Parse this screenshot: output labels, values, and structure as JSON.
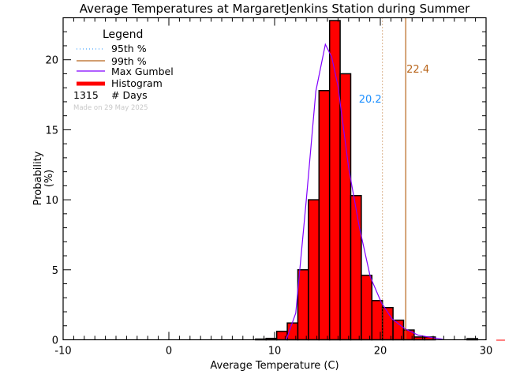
{
  "chart_data": {
    "type": "bar",
    "title": "Average Temperatures at MargaretJenkins Station during Summer",
    "xlabel": "Average Temperature (C)",
    "ylabel_line1": "Probability",
    "ylabel_line2": "(%)",
    "xlim": [
      -10,
      30
    ],
    "ylim": [
      0,
      23
    ],
    "x_ticks": [
      -10,
      0,
      10,
      20,
      30
    ],
    "y_ticks": [
      0,
      5,
      10,
      15,
      20
    ],
    "grid": false,
    "legend_position": "top-left",
    "legend": {
      "title": "Legend",
      "items": [
        {
          "label": "95th %",
          "style": "dotted",
          "color": "#1e90ff"
        },
        {
          "label": "99th %",
          "style": "solid",
          "color": "#b8651b"
        },
        {
          "label": "Max Gumbel",
          "style": "solid",
          "color": "#8000ff"
        },
        {
          "label": "Histogram",
          "style": "thick",
          "color": "#ff0000"
        }
      ],
      "days_count": "1315",
      "days_label": "# Days",
      "made_on": "Made on 29 May 2025"
    },
    "histogram": {
      "bin_width": 1,
      "bin_left_edges": [
        8.2,
        9.2,
        10.2,
        11.2,
        12.2,
        13.2,
        14.2,
        15.2,
        16.2,
        17.2,
        18.2,
        19.2,
        20.2,
        21.2,
        22.2,
        23.2,
        24.2,
        25.2,
        26.2,
        27.2,
        28.2
      ],
      "values": [
        0.05,
        0.1,
        0.6,
        1.2,
        5.0,
        10.0,
        17.8,
        22.8,
        19.0,
        10.3,
        4.6,
        2.8,
        2.3,
        1.4,
        0.7,
        0.2,
        0.2,
        0,
        0,
        0,
        0.08
      ],
      "color": "#ff0000"
    },
    "gumbel": {
      "color": "#8000ff",
      "x": [
        11.1,
        12.0,
        13.0,
        13.9,
        14.8,
        15.4,
        16.0,
        17.0,
        18.0,
        19.05,
        20.1,
        21.1,
        22.3,
        23.6,
        25.9
      ],
      "y": [
        0,
        1.9,
        10.0,
        17.75,
        21.1,
        20.2,
        18.1,
        12.3,
        8.1,
        4.5,
        2.65,
        1.5,
        0.8,
        0.32,
        0.04
      ]
    },
    "percentiles": [
      {
        "name": "95th %",
        "value": 20.2,
        "label": "20.2",
        "line_color": "#b8651b",
        "label_color": "#1e90ff",
        "style": "dotted"
      },
      {
        "name": "99th %",
        "value": 22.4,
        "label": "22.4",
        "line_color": "#b8651b",
        "label_color": "#b8651b",
        "style": "solid"
      }
    ]
  }
}
